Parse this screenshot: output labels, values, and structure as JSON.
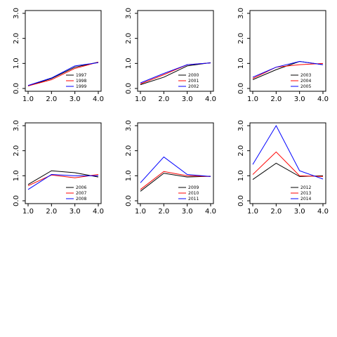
{
  "chart_data": [
    {
      "type": "line",
      "x": [
        1.0,
        2.0,
        3.0,
        4.0
      ],
      "xlim": [
        1.0,
        4.0
      ],
      "ylim": [
        0.0,
        3.0
      ],
      "x_ticks": [
        "1.0",
        "2.0",
        "3.0",
        "4.0"
      ],
      "y_ticks": [
        "0.0",
        "1.0",
        "2.0",
        "3.0"
      ],
      "grid": false,
      "legend_position": "bottom-right",
      "series": [
        {
          "name": "1997",
          "color": "#000000",
          "values": [
            0.1,
            0.4,
            0.85,
            1.05
          ]
        },
        {
          "name": "1998",
          "color": "#ff0000",
          "values": [
            0.1,
            0.35,
            0.8,
            1.05
          ]
        },
        {
          "name": "1999",
          "color": "#0000ff",
          "values": [
            0.12,
            0.42,
            0.9,
            1.03
          ]
        }
      ]
    },
    {
      "type": "line",
      "x": [
        1.0,
        2.0,
        3.0,
        4.0
      ],
      "xlim": [
        1.0,
        4.0
      ],
      "ylim": [
        0.0,
        3.0
      ],
      "x_ticks": [
        "1.0",
        "2.0",
        "3.0",
        "4.0"
      ],
      "y_ticks": [
        "0.0",
        "1.0",
        "2.0",
        "3.0"
      ],
      "grid": false,
      "legend_position": "bottom-right",
      "series": [
        {
          "name": "2000",
          "color": "#000000",
          "values": [
            0.15,
            0.45,
            0.9,
            1.03
          ]
        },
        {
          "name": "2001",
          "color": "#ff0000",
          "values": [
            0.18,
            0.55,
            0.95,
            1.02
          ]
        },
        {
          "name": "2002",
          "color": "#0000ff",
          "values": [
            0.22,
            0.6,
            0.95,
            1.02
          ]
        }
      ]
    },
    {
      "type": "line",
      "x": [
        1.0,
        2.0,
        3.0,
        4.0
      ],
      "xlim": [
        1.0,
        4.0
      ],
      "ylim": [
        0.0,
        3.0
      ],
      "x_ticks": [
        "1.0",
        "2.0",
        "3.0",
        "4.0"
      ],
      "y_ticks": [
        "0.0",
        "1.0",
        "2.0",
        "3.0"
      ],
      "grid": false,
      "legend_position": "bottom-right",
      "series": [
        {
          "name": "2003",
          "color": "#000000",
          "values": [
            0.35,
            0.75,
            1.08,
            0.95
          ]
        },
        {
          "name": "2004",
          "color": "#ff0000",
          "values": [
            0.4,
            0.85,
            0.95,
            1.0
          ]
        },
        {
          "name": "2005",
          "color": "#0000ff",
          "values": [
            0.45,
            0.85,
            1.08,
            0.95
          ]
        }
      ]
    },
    {
      "type": "line",
      "x": [
        1.0,
        2.0,
        3.0,
        4.0
      ],
      "xlim": [
        1.0,
        4.0
      ],
      "ylim": [
        0.0,
        3.0
      ],
      "x_ticks": [
        "1.0",
        "2.0",
        "3.0",
        "4.0"
      ],
      "y_ticks": [
        "0.0",
        "1.0",
        "2.0",
        "3.0"
      ],
      "grid": false,
      "legend_position": "bottom-right",
      "series": [
        {
          "name": "2006",
          "color": "#000000",
          "values": [
            0.65,
            1.2,
            1.12,
            0.95
          ]
        },
        {
          "name": "2007",
          "color": "#ff0000",
          "values": [
            0.6,
            1.03,
            0.92,
            1.05
          ]
        },
        {
          "name": "2008",
          "color": "#0000ff",
          "values": [
            0.45,
            1.05,
            1.0,
            1.0
          ]
        }
      ]
    },
    {
      "type": "line",
      "x": [
        1.0,
        2.0,
        3.0,
        4.0
      ],
      "xlim": [
        1.0,
        4.0
      ],
      "ylim": [
        0.0,
        3.0
      ],
      "x_ticks": [
        "1.0",
        "2.0",
        "3.0",
        "4.0"
      ],
      "y_ticks": [
        "0.0",
        "1.0",
        "2.0",
        "3.0"
      ],
      "grid": false,
      "legend_position": "bottom-right",
      "series": [
        {
          "name": "2009",
          "color": "#000000",
          "values": [
            0.38,
            1.1,
            0.95,
            0.98
          ]
        },
        {
          "name": "2010",
          "color": "#ff0000",
          "values": [
            0.45,
            1.17,
            1.0,
            0.97
          ]
        },
        {
          "name": "2011",
          "color": "#0000ff",
          "values": [
            0.72,
            1.75,
            1.05,
            0.97
          ]
        }
      ]
    },
    {
      "type": "line",
      "x": [
        1.0,
        2.0,
        3.0,
        4.0
      ],
      "xlim": [
        1.0,
        4.0
      ],
      "ylim": [
        0.0,
        3.0
      ],
      "x_ticks": [
        "1.0",
        "2.0",
        "3.0",
        "4.0"
      ],
      "y_ticks": [
        "0.0",
        "1.0",
        "2.0",
        "3.0"
      ],
      "grid": false,
      "legend_position": "bottom-right",
      "series": [
        {
          "name": "2012",
          "color": "#000000",
          "values": [
            0.85,
            1.5,
            0.97,
            1.0
          ]
        },
        {
          "name": "2013",
          "color": "#ff0000",
          "values": [
            1.05,
            1.95,
            1.0,
            0.97
          ]
        },
        {
          "name": "2014",
          "color": "#0000ff",
          "values": [
            1.45,
            3.0,
            1.2,
            0.87
          ]
        }
      ]
    }
  ]
}
